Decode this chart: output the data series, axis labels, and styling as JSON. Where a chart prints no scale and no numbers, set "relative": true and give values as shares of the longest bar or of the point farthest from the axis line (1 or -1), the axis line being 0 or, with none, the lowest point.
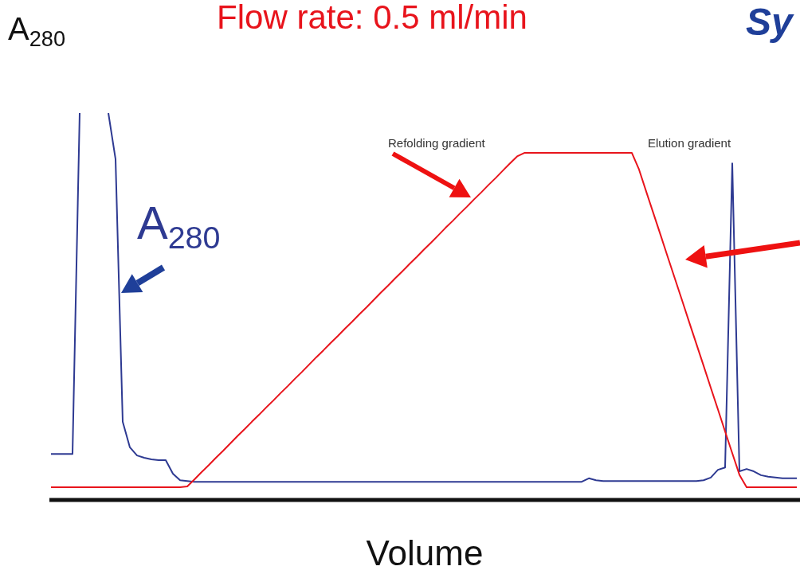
{
  "chart_data": {
    "type": "line",
    "title": "Flow rate: 0.5 ml/min",
    "xlabel": "Volume",
    "ylabel": "A$_{280}$",
    "relative": true,
    "grid": false,
    "legend": false,
    "marker": "none",
    "line_style": "solid",
    "annotations": [
      "Refolding gradient",
      "Elution gradient",
      "Sy"
    ],
    "categories": [
      null,
      null,
      null,
      null,
      null,
      null,
      null,
      null,
      null,
      null,
      null,
      null,
      null,
      null,
      null,
      null,
      null,
      null,
      null,
      null,
      null,
      null,
      null,
      null,
      null,
      null,
      null,
      null,
      null,
      null,
      null,
      null,
      null,
      null,
      null,
      null,
      null,
      null,
      null,
      null,
      null,
      null,
      null,
      null,
      null,
      null,
      null,
      null,
      null,
      null,
      null,
      null,
      null,
      null,
      null,
      null,
      null,
      null,
      null,
      null,
      null,
      null,
      null,
      null,
      null,
      null,
      null,
      null,
      null,
      null,
      null,
      null,
      null,
      null,
      null,
      null,
      null,
      null,
      null,
      null,
      null,
      null,
      null,
      null,
      null,
      null,
      null,
      null,
      null,
      null,
      null,
      null,
      null,
      null,
      null,
      null,
      null,
      null,
      null,
      null,
      null,
      null,
      null,
      null,
      null
    ],
    "series": [
      {
        "name": "A$_{280}$",
        "color": "#2e3a92",
        "values": [
          0.119,
          0.119,
          0.119,
          0.119,
          1,
          null,
          null,
          null,
          1,
          0.881,
          0.202,
          0.136,
          0.115,
          0.109,
          0.105,
          0.103,
          0.103,
          0.068,
          0.051,
          0.049,
          0.047,
          0.047,
          0.047,
          0.047,
          0.047,
          0.047,
          0.047,
          0.047,
          0.047,
          0.047,
          0.047,
          0.047,
          0.047,
          0.047,
          0.047,
          0.047,
          0.047,
          0.047,
          0.047,
          0.047,
          0.047,
          0.047,
          0.047,
          0.047,
          0.047,
          0.047,
          0.047,
          0.047,
          0.047,
          0.047,
          0.047,
          0.047,
          0.047,
          0.047,
          0.047,
          0.047,
          0.047,
          0.047,
          0.047,
          0.047,
          0.047,
          0.047,
          0.047,
          0.047,
          0.047,
          0.047,
          0.047,
          0.047,
          0.047,
          0.047,
          0.047,
          0.047,
          0.047,
          0.047,
          0.047,
          0.056,
          0.051,
          0.049,
          0.049,
          0.049,
          0.049,
          0.049,
          0.049,
          0.049,
          0.049,
          0.049,
          0.049,
          0.049,
          0.049,
          0.049,
          0.049,
          0.051,
          0.058,
          0.078,
          0.084,
          0.87,
          0.074,
          0.08,
          0.074,
          0.064,
          0.06,
          0.058,
          0.056,
          0.056,
          0.056
        ]
      },
      {
        "color": "#e8141c",
        "values": [
          0.033,
          0.033,
          0.033,
          0.033,
          0.033,
          0.033,
          0.033,
          0.033,
          0.033,
          0.033,
          0.033,
          0.033,
          0.033,
          0.033,
          0.033,
          0.033,
          0.033,
          0.033,
          0.033,
          0.035,
          0.053,
          0.072,
          0.09,
          0.109,
          0.127,
          0.146,
          0.165,
          0.183,
          0.202,
          0.22,
          0.239,
          0.257,
          0.276,
          0.294,
          0.313,
          0.331,
          0.35,
          0.369,
          0.387,
          0.406,
          0.424,
          0.443,
          0.461,
          0.48,
          0.498,
          0.517,
          0.536,
          0.554,
          0.573,
          0.591,
          0.61,
          0.628,
          0.647,
          0.665,
          0.684,
          0.703,
          0.721,
          0.74,
          0.758,
          0.777,
          0.795,
          0.814,
          0.832,
          0.851,
          0.87,
          0.888,
          0.897,
          0.897,
          0.897,
          0.897,
          0.897,
          0.897,
          0.897,
          0.897,
          0.897,
          0.897,
          0.897,
          0.897,
          0.897,
          0.897,
          0.897,
          0.897,
          0.854,
          0.797,
          0.741,
          0.685,
          0.628,
          0.572,
          0.516,
          0.459,
          0.403,
          0.347,
          0.29,
          0.234,
          0.177,
          0.121,
          0.065,
          0.033,
          0.033,
          0.033,
          0.033,
          0.033,
          0.033,
          0.033,
          0.033
        ]
      }
    ]
  }
}
